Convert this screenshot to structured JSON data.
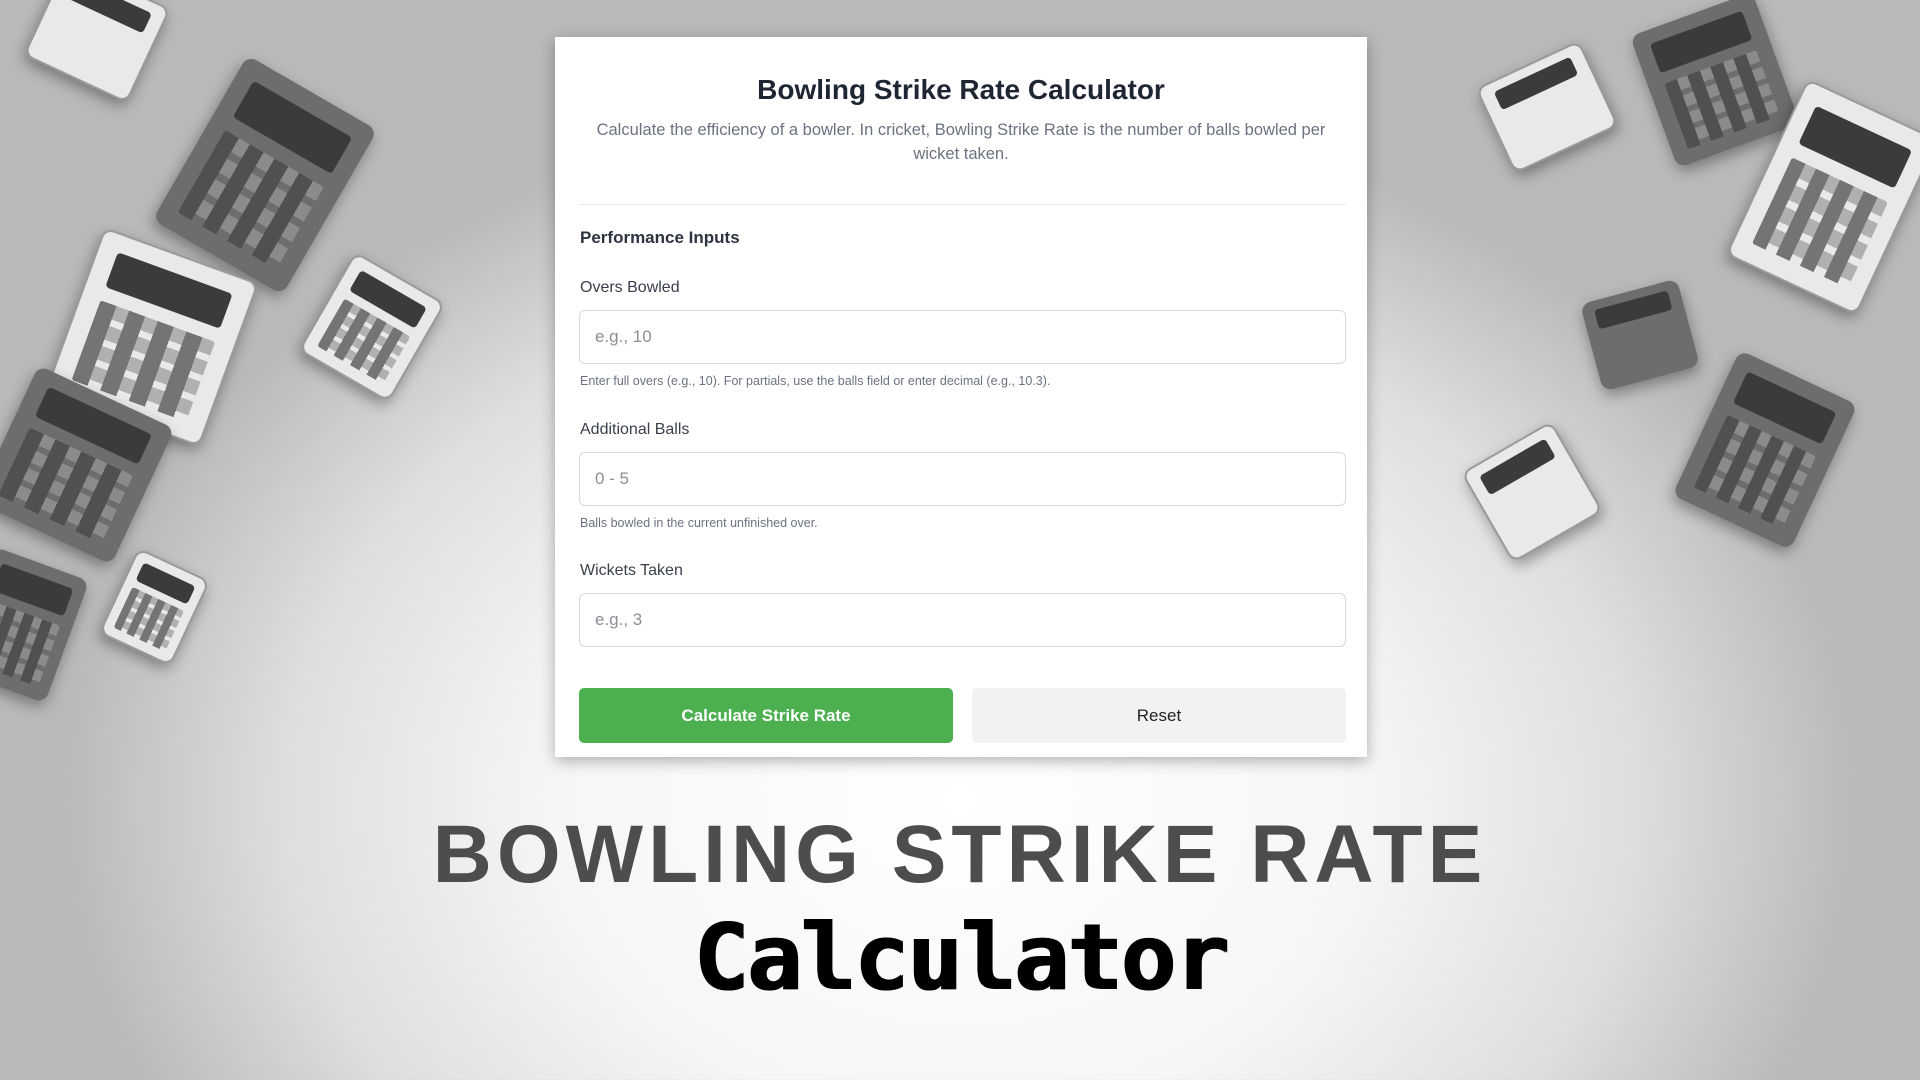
{
  "card": {
    "title": "Bowling Strike Rate Calculator",
    "subtitle": "Calculate the efficiency of a bowler. In cricket, Bowling Strike Rate is the number of balls bowled per wicket taken.",
    "section_title": "Performance Inputs",
    "fields": [
      {
        "label": "Overs Bowled",
        "value": "",
        "placeholder": "e.g., 10",
        "help": "Enter full overs (e.g., 10). For partials, use the balls field or enter decimal (e.g., 10.3)."
      },
      {
        "label": "Additional Balls",
        "value": "",
        "placeholder": "0 - 5",
        "help": "Balls bowled in the current unfinished over."
      },
      {
        "label": "Wickets Taken",
        "value": "",
        "placeholder": "e.g., 3",
        "help": ""
      }
    ],
    "calculate_label": "Calculate Strike Rate",
    "reset_label": "Reset"
  },
  "banner": {
    "headline": "BOWLING STRIKE RATE",
    "subheadline": "Calculator"
  },
  "colors": {
    "accent": "#4caf50",
    "reset_bg": "#f1f2f4",
    "headline": "#4d4d4d"
  }
}
